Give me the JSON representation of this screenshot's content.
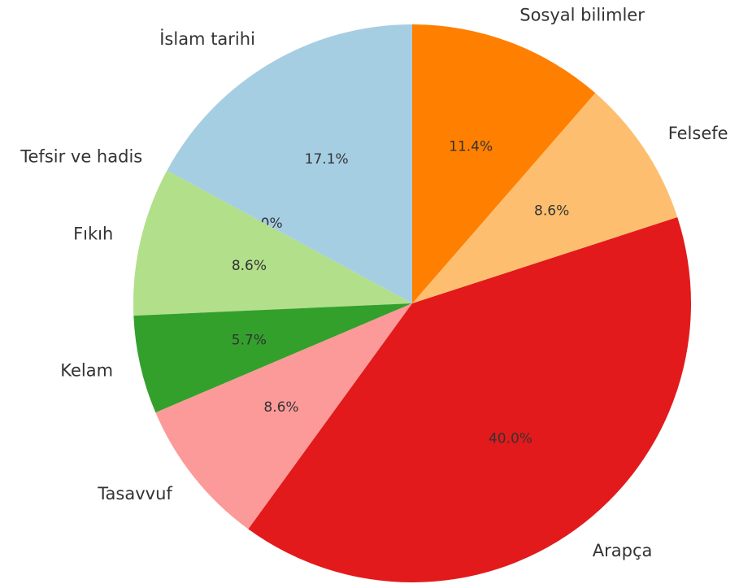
{
  "chart_data": {
    "type": "pie",
    "categories": [
      "İslam tarihi",
      "Tefsir ve hadis",
      "Fıkıh",
      "Kelam",
      "Tasavvuf",
      "Arapça",
      "Felsefe",
      "Sosyal bilimler"
    ],
    "values": [
      17.1,
      0.0,
      8.6,
      5.7,
      8.6,
      40.0,
      8.6,
      11.4
    ],
    "value_labels": [
      "17.1%",
      "0.0%",
      "8.6%",
      "5.7%",
      "8.6%",
      "40.0%",
      "8.6%",
      "11.4%"
    ],
    "colors": [
      "#a6cee3",
      "#1f78b4",
      "#b2df8a",
      "#33a02c",
      "#fb9a99",
      "#e31a1c",
      "#fdbf6f",
      "#ff7f00"
    ]
  }
}
